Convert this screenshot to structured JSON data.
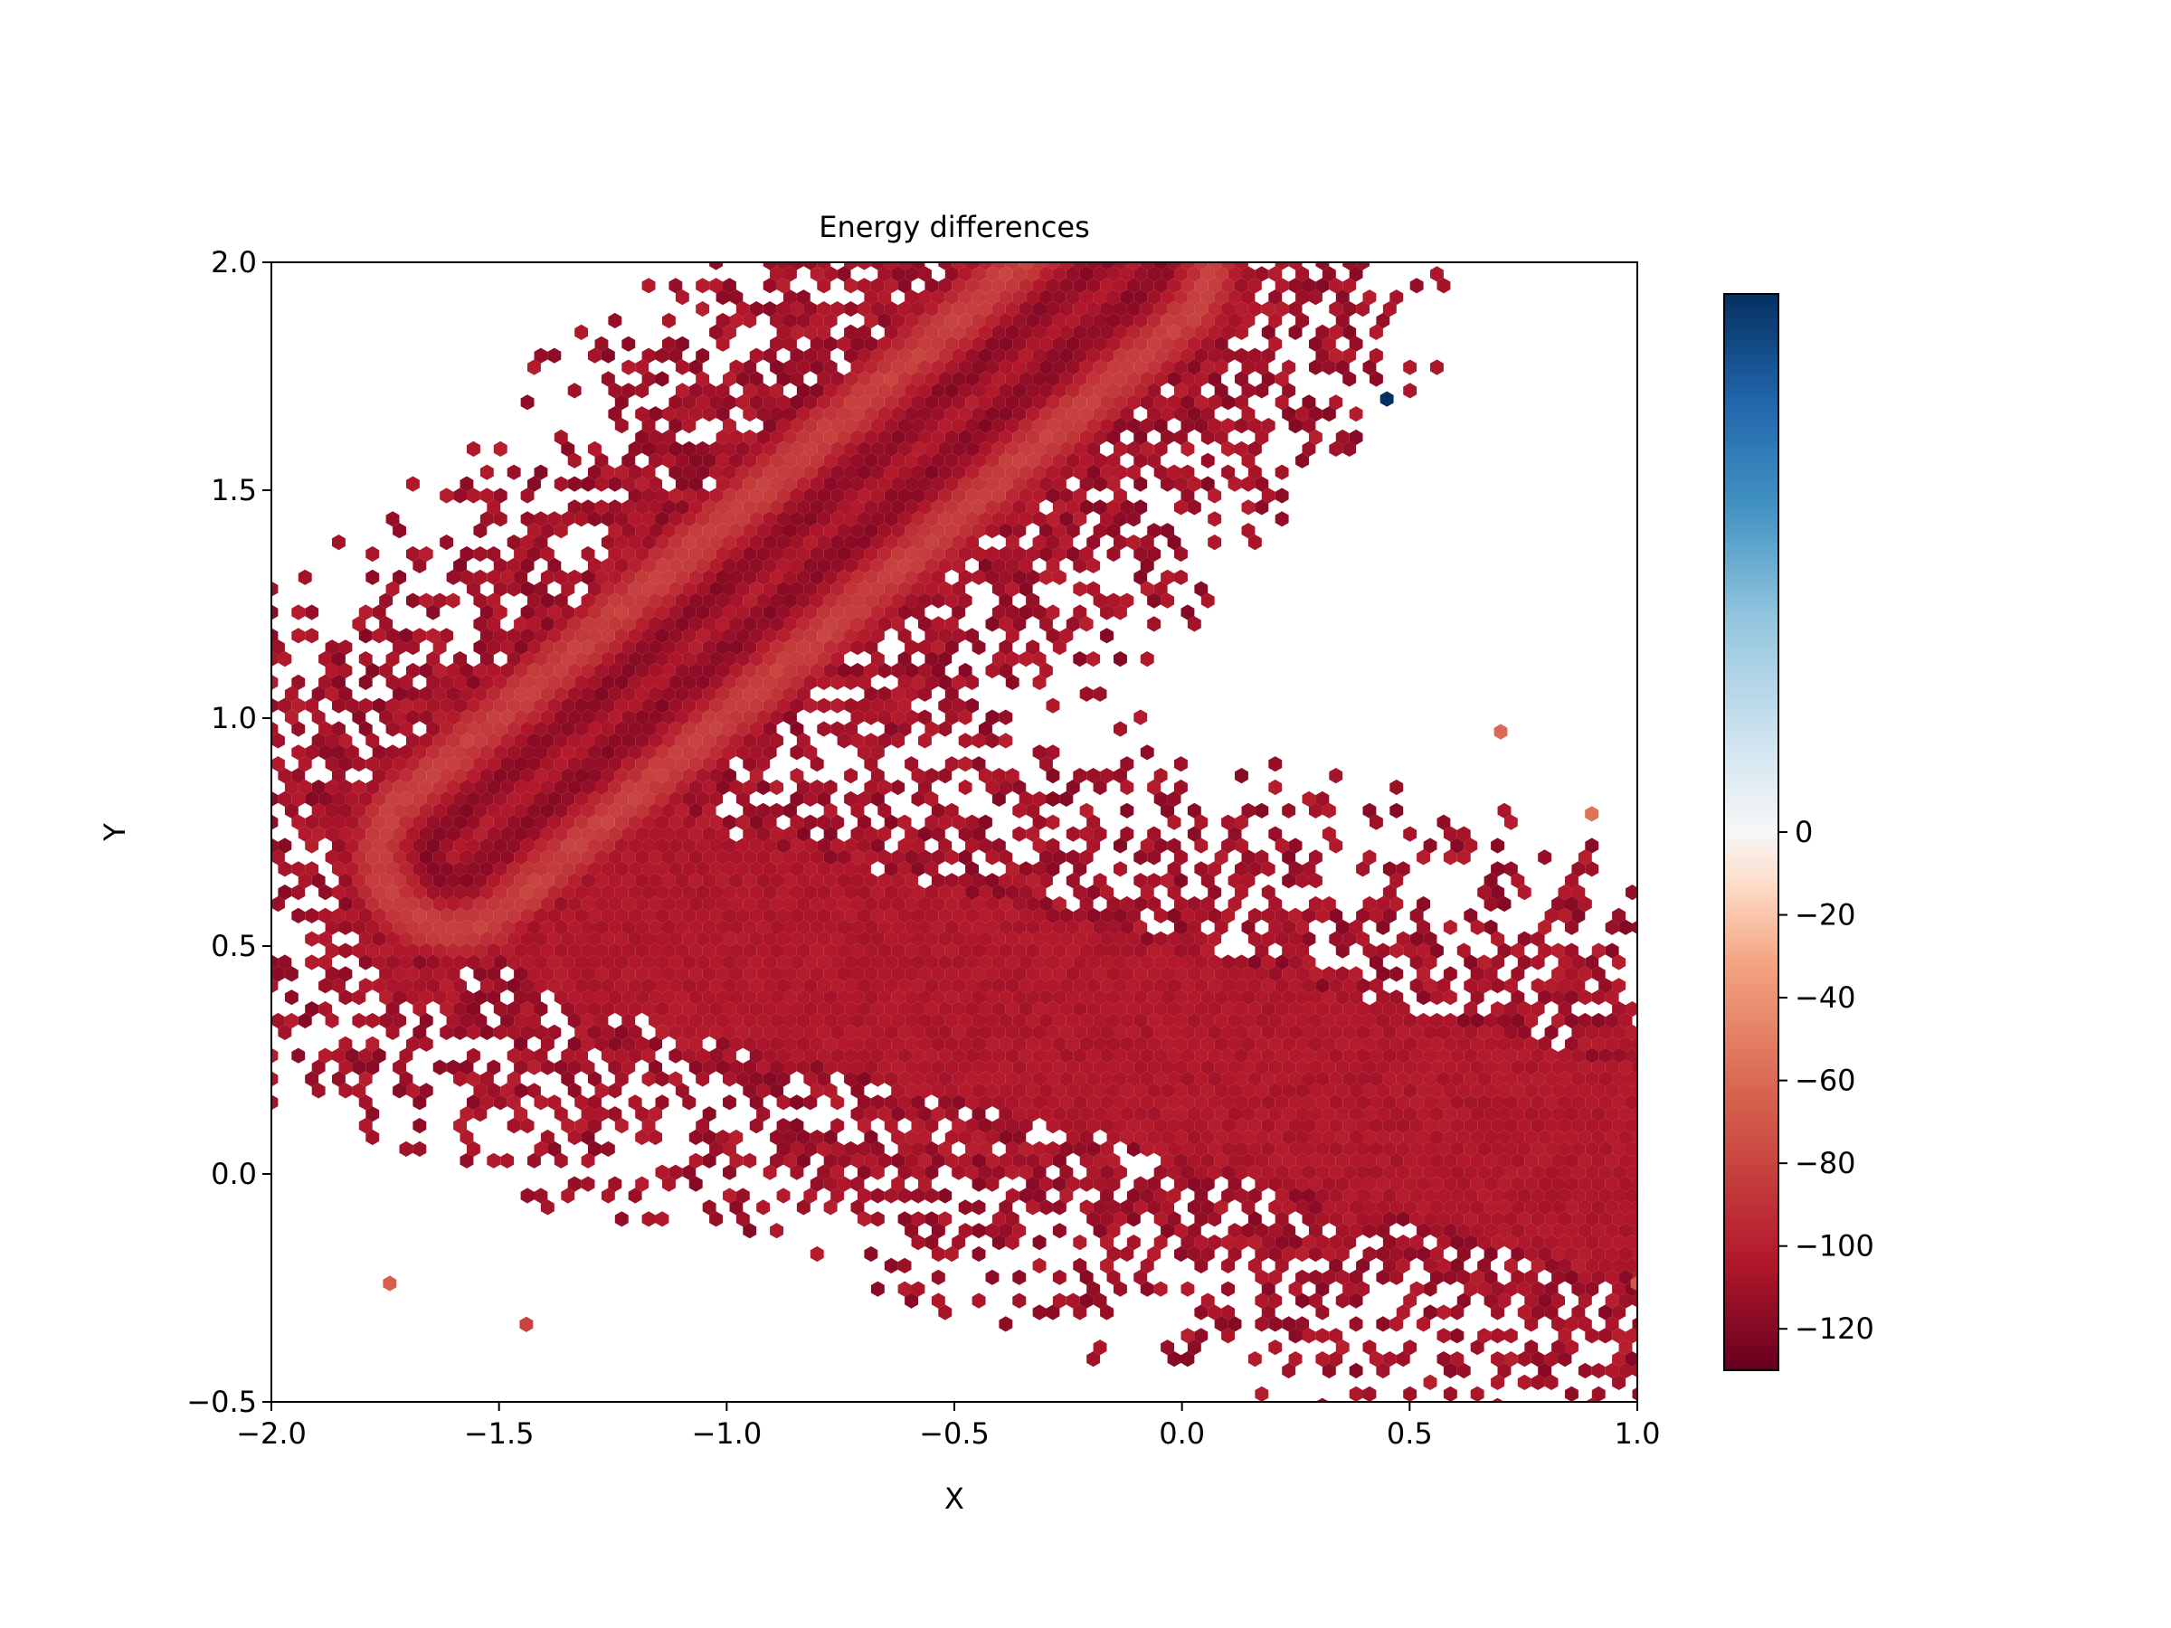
{
  "chart_data": {
    "type": "heatmap",
    "subtype": "hexbin",
    "title": "Energy differences",
    "xlabel": "X",
    "ylabel": "Y",
    "xlim": [
      -2.0,
      1.0
    ],
    "ylim": [
      -0.5,
      2.0
    ],
    "x_ticks": [
      "−2.0",
      "−1.5",
      "−1.0",
      "−0.5",
      "0.0",
      "0.5",
      "1.0"
    ],
    "x_tick_values": [
      -2.0,
      -1.5,
      -1.0,
      -0.5,
      0.0,
      0.5,
      1.0
    ],
    "y_ticks": [
      "−0.5",
      "0.0",
      "0.5",
      "1.0",
      "1.5",
      "2.0"
    ],
    "y_tick_values": [
      -0.5,
      0.0,
      0.5,
      1.0,
      1.5,
      2.0
    ],
    "colormap": "RdBu",
    "colorbar": {
      "vmin": -130,
      "vmax": 130,
      "ticks": [
        "0",
        "−20",
        "−40",
        "−60",
        "−80",
        "−100",
        "−120"
      ],
      "tick_values": [
        0,
        -20,
        -40,
        -60,
        -80,
        -100,
        -120
      ]
    },
    "grid": false,
    "bins": [
      {
        "x": 0.45,
        "y": 1.7,
        "value": 130
      },
      {
        "x": 0.7,
        "y": 0.97,
        "value": -60
      },
      {
        "x": 0.9,
        "y": 0.79,
        "value": -55
      },
      {
        "x": -1.74,
        "y": -0.24,
        "value": -65
      },
      {
        "x": -1.44,
        "y": -0.33,
        "value": -80
      },
      {
        "x": 1.0,
        "y": -0.24,
        "value": -70
      }
    ],
    "density_regions": [
      {
        "name": "diagonal band",
        "from": [
          -1.6,
          0.7
        ],
        "to": [
          -0.1,
          2.0
        ],
        "value": -100
      },
      {
        "name": "lower arm",
        "from": [
          -1.3,
          0.6
        ],
        "to": [
          1.0,
          0.0
        ],
        "value": -105
      }
    ]
  }
}
